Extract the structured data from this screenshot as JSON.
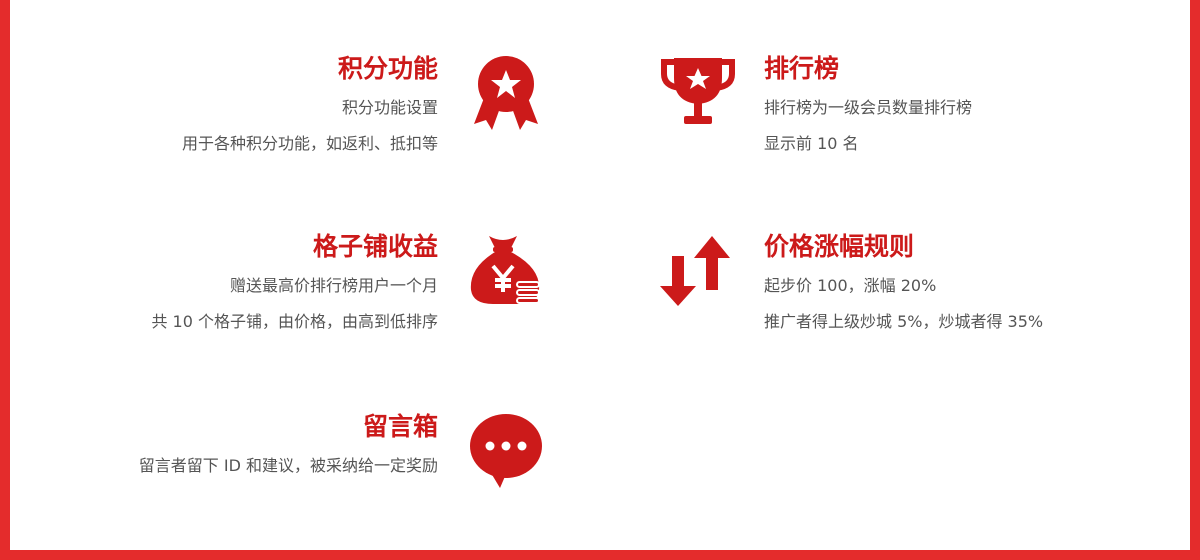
{
  "colors": {
    "accent": "#cc1a1a",
    "frame": "#e42c2c",
    "text": "#555555"
  },
  "features": {
    "points": {
      "title": "积分功能",
      "line1": "积分功能设置",
      "line2": "用于各种积分功能，如返利、抵扣等",
      "icon": "medal-star-icon"
    },
    "ranking": {
      "title": "排行榜",
      "line1": "排行榜为一级会员数量排行榜",
      "line2": "显示前 10 名",
      "icon": "trophy-icon"
    },
    "shop_income": {
      "title": "格子铺收益",
      "line1": "赠送最高价排行榜用户一个月",
      "line2": "共 10 个格子铺，由价格，由高到低排序",
      "icon": "money-bag-yen-icon"
    },
    "price_rules": {
      "title": "价格涨幅规则",
      "line1": "起步价 100，涨幅 20%",
      "line2": "推广者得上级炒城 5%，炒城者得 35%",
      "icon": "up-down-arrows-icon"
    },
    "message_box": {
      "title": "留言箱",
      "line1": "留言者留下 ID 和建议，被采纳给一定奖励",
      "icon": "chat-bubble-icon"
    }
  }
}
